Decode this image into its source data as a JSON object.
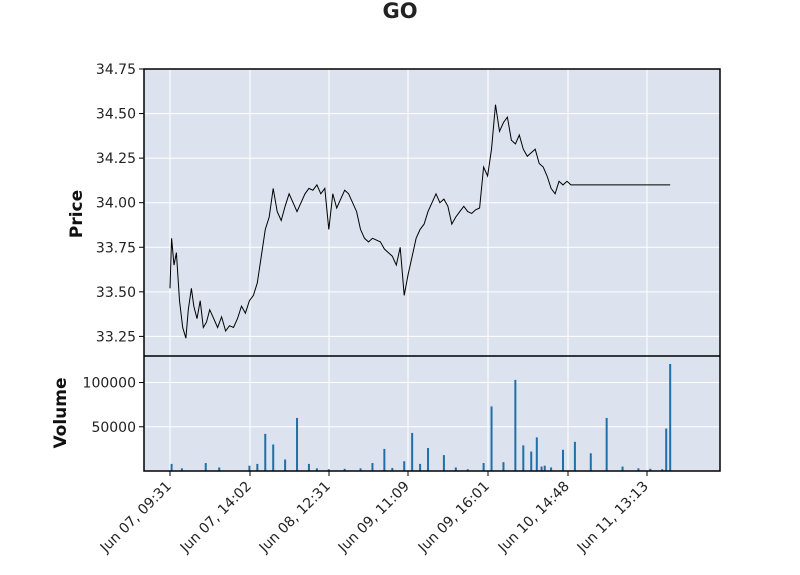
{
  "chart_data": {
    "type": "line",
    "title": "GO",
    "grid": true,
    "background": "#dde3ee",
    "price_color": "#000000",
    "volume_color": "#1f6fa8",
    "x_tick_labels": [
      "Jun 07, 09:31",
      "Jun 07, 14:02",
      "Jun 08, 12:31",
      "Jun 09, 11:09",
      "Jun 09, 16:01",
      "Jun 10, 14:48",
      "Jun 11, 13:13"
    ],
    "price_panel": {
      "ylabel": "Price",
      "ylim": [
        33.14,
        34.75
      ],
      "yticks": [
        33.25,
        33.5,
        33.75,
        34.0,
        34.25,
        34.5,
        34.75
      ],
      "ytick_labels": [
        "33.25",
        "33.50",
        "33.75",
        "34.00",
        "34.25",
        "34.50",
        "34.75"
      ],
      "x": [
        0.0,
        0.02,
        0.05,
        0.08,
        0.12,
        0.16,
        0.2,
        0.23,
        0.27,
        0.3,
        0.34,
        0.38,
        0.42,
        0.46,
        0.5,
        0.55,
        0.6,
        0.65,
        0.7,
        0.75,
        0.8,
        0.85,
        0.9,
        0.95,
        1.0,
        1.05,
        1.1,
        1.15,
        1.2,
        1.25,
        1.3,
        1.35,
        1.4,
        1.45,
        1.5,
        1.55,
        1.6,
        1.65,
        1.7,
        1.75,
        1.8,
        1.85,
        1.9,
        1.95,
        2.0,
        2.05,
        2.1,
        2.15,
        2.2,
        2.25,
        2.3,
        2.35,
        2.4,
        2.45,
        2.5,
        2.55,
        2.6,
        2.65,
        2.7,
        2.75,
        2.8,
        2.85,
        2.9,
        2.95,
        3.0,
        3.05,
        3.1,
        3.15,
        3.2,
        3.25,
        3.3,
        3.35,
        3.4,
        3.45,
        3.5,
        3.55,
        3.6,
        3.65,
        3.7,
        3.75,
        3.8,
        3.85,
        3.9,
        3.95,
        4.0,
        4.05,
        4.1,
        4.15,
        4.2,
        4.25,
        4.3,
        4.35,
        4.4,
        4.45,
        4.5,
        4.55,
        4.6,
        4.65,
        4.7,
        4.75,
        4.8,
        4.85,
        4.9,
        4.95,
        5.0,
        5.05,
        5.1,
        5.15,
        5.2,
        5.25,
        5.3,
        5.35,
        5.4,
        5.45,
        5.5,
        5.55,
        5.6,
        5.65,
        5.7,
        5.75,
        5.8,
        5.85,
        5.9,
        5.95,
        6.0,
        6.05,
        6.1,
        6.15,
        6.2,
        6.25,
        6.3
      ],
      "values": [
        33.52,
        33.8,
        33.65,
        33.72,
        33.45,
        33.3,
        33.24,
        33.4,
        33.52,
        33.42,
        33.35,
        33.45,
        33.3,
        33.33,
        33.4,
        33.35,
        33.3,
        33.36,
        33.28,
        33.31,
        33.3,
        33.35,
        33.42,
        33.38,
        33.45,
        33.48,
        33.55,
        33.7,
        33.85,
        33.92,
        34.08,
        33.95,
        33.9,
        33.98,
        34.05,
        34.0,
        33.95,
        34.0,
        34.05,
        34.08,
        34.07,
        34.1,
        34.05,
        34.08,
        33.85,
        34.05,
        33.97,
        34.02,
        34.07,
        34.05,
        34.0,
        33.95,
        33.85,
        33.8,
        33.78,
        33.8,
        33.79,
        33.78,
        33.74,
        33.72,
        33.7,
        33.65,
        33.75,
        33.48,
        33.6,
        33.7,
        33.8,
        33.85,
        33.88,
        33.95,
        34.0,
        34.05,
        34.0,
        34.02,
        33.98,
        33.88,
        33.92,
        33.95,
        33.98,
        33.95,
        33.94,
        33.96,
        33.97,
        34.2,
        34.15,
        34.3,
        34.55,
        34.4,
        34.45,
        34.48,
        34.35,
        34.33,
        34.38,
        34.3,
        34.26,
        34.28,
        34.3,
        34.22,
        34.2,
        34.15,
        34.08,
        34.05,
        34.12,
        34.1,
        34.12,
        34.1,
        34.1,
        34.1,
        34.1,
        34.1,
        34.1,
        34.1,
        34.1,
        34.1,
        34.1,
        34.1,
        34.1,
        34.1,
        34.1,
        34.1,
        34.1,
        34.1,
        34.1,
        34.1,
        34.1,
        34.1,
        34.1,
        34.1,
        34.1,
        34.1,
        34.1
      ]
    },
    "volume_panel": {
      "ylabel": "Volume",
      "ylim": [
        0,
        130000
      ],
      "yticks": [
        50000,
        100000
      ],
      "ytick_labels": [
        "50000",
        "100000"
      ],
      "x": [
        0.02,
        0.15,
        0.45,
        0.62,
        1.0,
        1.1,
        1.2,
        1.3,
        1.45,
        1.6,
        1.75,
        1.85,
        2.0,
        2.2,
        2.4,
        2.55,
        2.7,
        2.8,
        2.95,
        3.05,
        3.15,
        3.25,
        3.45,
        3.6,
        3.75,
        3.95,
        4.05,
        4.2,
        4.35,
        4.45,
        4.55,
        4.62,
        4.68,
        4.72,
        4.8,
        4.95,
        5.1,
        5.3,
        5.5,
        5.7,
        5.9,
        6.05,
        6.2,
        6.25,
        6.3
      ],
      "values": [
        8000,
        3000,
        9000,
        4000,
        6000,
        8000,
        42000,
        30000,
        13000,
        60000,
        8000,
        3000,
        2000,
        2500,
        3000,
        9000,
        25000,
        3500,
        11000,
        43000,
        8000,
        26000,
        18000,
        4000,
        2000,
        9000,
        73000,
        10000,
        103000,
        29000,
        22000,
        38000,
        5000,
        6000,
        4000,
        24000,
        33000,
        20000,
        60000,
        5000,
        3000,
        2500,
        2000,
        48000,
        121000
      ]
    }
  }
}
